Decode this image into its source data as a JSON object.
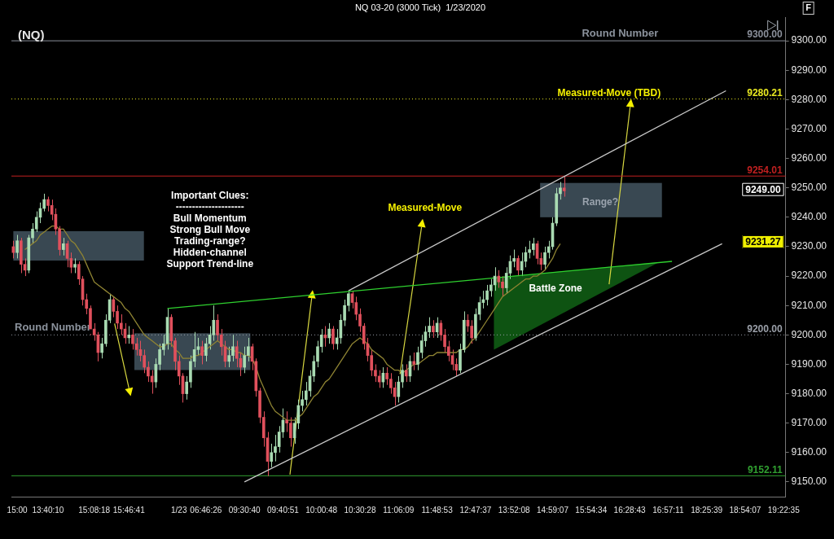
{
  "chart_data": {
    "type": "candlestick",
    "title": "NQ 03-20 (3000 Tick)  1/23/2020",
    "subtitle": "(NQ)",
    "categories": [
      null,
      "15:00",
      null,
      null,
      null,
      null,
      null,
      null,
      null,
      "13:40:10",
      null,
      null,
      null,
      null,
      null,
      null,
      null,
      null,
      null,
      null,
      null,
      "15:08:18",
      null,
      null,
      null,
      null,
      null,
      null,
      null,
      null,
      "15:46:41",
      null,
      null,
      null,
      null,
      null,
      null,
      null,
      null,
      null,
      null,
      null,
      null,
      "1/23",
      null,
      null,
      null,
      null,
      null,
      null,
      "06:46:26",
      null,
      null,
      null,
      null,
      null,
      null,
      null,
      null,
      null,
      "09:30:40",
      null,
      null,
      null,
      null,
      null,
      null,
      null,
      null,
      null,
      "09:40:51",
      null,
      null,
      null,
      null,
      null,
      null,
      null,
      null,
      null,
      "10:00:48",
      null,
      null,
      null,
      null,
      null,
      null,
      null,
      null,
      null,
      "10:30:28",
      null,
      null,
      null,
      null,
      null,
      null,
      null,
      null,
      null,
      "11:06:09",
      null,
      null,
      null,
      null,
      null,
      null,
      null,
      null,
      null,
      "11:48:53",
      null,
      null,
      null,
      null,
      null,
      null,
      null,
      null,
      null,
      "12:47:37",
      null,
      null,
      null,
      null,
      null,
      null,
      null,
      null,
      null,
      "13:52:08",
      null,
      null,
      null,
      null,
      null,
      null,
      null,
      null,
      null,
      "14:59:07",
      null,
      null,
      null,
      null,
      null,
      null,
      null,
      null,
      null,
      "15:54:34",
      null,
      null,
      null,
      null,
      null,
      null,
      null,
      null,
      null,
      "16:28:43",
      null,
      null,
      null,
      null,
      null,
      null,
      null,
      null,
      null,
      "16:57:11",
      null,
      null,
      null,
      null,
      null,
      null,
      null,
      null,
      null,
      "18:25:39",
      null,
      null,
      null,
      null,
      null,
      null,
      null,
      null,
      null,
      "18:54:07",
      null,
      null,
      null,
      null,
      null,
      null,
      null,
      null,
      null,
      "19:22:35"
    ],
    "ohlc": [
      [
        9230,
        9232,
        9226,
        9228
      ],
      [
        9228,
        9234,
        9226,
        9232
      ],
      [
        9232,
        9233,
        9221,
        9224
      ],
      [
        9224,
        9226,
        9220,
        9222
      ],
      [
        9222,
        9234,
        9221,
        9233
      ],
      [
        9233,
        9238,
        9231,
        9236
      ],
      [
        9236,
        9242,
        9235,
        9240
      ],
      [
        9240,
        9245,
        9238,
        9243
      ],
      [
        9243,
        9248,
        9242,
        9246
      ],
      [
        9246,
        9247,
        9242,
        9244
      ],
      [
        9244,
        9246,
        9239,
        9241
      ],
      [
        9241,
        9243,
        9234,
        9236
      ],
      [
        9236,
        9237,
        9227,
        9229
      ],
      [
        9229,
        9233,
        9227,
        9231
      ],
      [
        9231,
        9232,
        9223,
        9226
      ],
      [
        9226,
        9228,
        9221,
        9223
      ],
      [
        9223,
        9226,
        9221,
        9224
      ],
      [
        9224,
        9225,
        9217,
        9219
      ],
      [
        9219,
        9220,
        9210,
        9212
      ],
      [
        9212,
        9214,
        9207,
        9209
      ],
      [
        9209,
        9210,
        9200,
        9202
      ],
      [
        9202,
        9204,
        9198,
        9200
      ],
      [
        9200,
        9201,
        9191,
        9194
      ],
      [
        9194,
        9199,
        9192,
        9197
      ],
      [
        9197,
        9207,
        9196,
        9205
      ],
      [
        9205,
        9214,
        9204,
        9212
      ],
      [
        9212,
        9213,
        9206,
        9208
      ],
      [
        9208,
        9210,
        9202,
        9204
      ],
      [
        9204,
        9207,
        9200,
        9202
      ],
      [
        9202,
        9204,
        9197,
        9199
      ],
      [
        9199,
        9203,
        9197,
        9200
      ],
      [
        9200,
        9202,
        9195,
        9197
      ],
      [
        9197,
        9199,
        9193,
        9195
      ],
      [
        9195,
        9198,
        9191,
        9193
      ],
      [
        9193,
        9195,
        9187,
        9189
      ],
      [
        9189,
        9191,
        9184,
        9186
      ],
      [
        9186,
        9188,
        9180,
        9184
      ],
      [
        9184,
        9192,
        9182,
        9190
      ],
      [
        9190,
        9197,
        9188,
        9195
      ],
      [
        9195,
        9200,
        9193,
        9197
      ],
      [
        9197,
        9209,
        9195,
        9206
      ],
      [
        9206,
        9207,
        9196,
        9198
      ],
      [
        9198,
        9199,
        9188,
        9191
      ],
      [
        9191,
        9193,
        9183,
        9186
      ],
      [
        9186,
        9187,
        9177,
        9180
      ],
      [
        9180,
        9186,
        9178,
        9184
      ],
      [
        9184,
        9193,
        9182,
        9191
      ],
      [
        9191,
        9201,
        9189,
        9195
      ],
      [
        9195,
        9199,
        9193,
        9196
      ],
      [
        9196,
        9198,
        9190,
        9193
      ],
      [
        9193,
        9199,
        9191,
        9197
      ],
      [
        9197,
        9203,
        9195,
        9200
      ],
      [
        9200,
        9210,
        9198,
        9205
      ],
      [
        9205,
        9207,
        9198,
        9200
      ],
      [
        9200,
        9202,
        9193,
        9196
      ],
      [
        9196,
        9198,
        9189,
        9191
      ],
      [
        9191,
        9196,
        9189,
        9193
      ],
      [
        9193,
        9200,
        9191,
        9196
      ],
      [
        9196,
        9198,
        9189,
        9192
      ],
      [
        9192,
        9194,
        9186,
        9189
      ],
      [
        9189,
        9196,
        9187,
        9193
      ],
      [
        9193,
        9199,
        9191,
        9196
      ],
      [
        9196,
        9197,
        9188,
        9191
      ],
      [
        9191,
        9192,
        9179,
        9181
      ],
      [
        9181,
        9182,
        9170,
        9172
      ],
      [
        9172,
        9174,
        9162,
        9165
      ],
      [
        9165,
        9167,
        9152,
        9157
      ],
      [
        9157,
        9163,
        9155,
        9160
      ],
      [
        9160,
        9166,
        9157,
        9162
      ],
      [
        9162,
        9169,
        9160,
        9167
      ],
      [
        9167,
        9175,
        9165,
        9171
      ],
      [
        9171,
        9174,
        9167,
        9170
      ],
      [
        9170,
        9172,
        9162,
        9165
      ],
      [
        9165,
        9172,
        9163,
        9170
      ],
      [
        9170,
        9178,
        9168,
        9176
      ],
      [
        9176,
        9181,
        9174,
        9178
      ],
      [
        9178,
        9184,
        9176,
        9181
      ],
      [
        9181,
        9188,
        9179,
        9186
      ],
      [
        9186,
        9193,
        9184,
        9191
      ],
      [
        9191,
        9198,
        9189,
        9196
      ],
      [
        9196,
        9202,
        9194,
        9200
      ],
      [
        9200,
        9203,
        9196,
        9199
      ],
      [
        9199,
        9204,
        9197,
        9202
      ],
      [
        9202,
        9203,
        9195,
        9197
      ],
      [
        9197,
        9202,
        9195,
        9199
      ],
      [
        9199,
        9207,
        9197,
        9205
      ],
      [
        9205,
        9212,
        9203,
        9210
      ],
      [
        9210,
        9215,
        9208,
        9214
      ],
      [
        9214,
        9215,
        9209,
        9211
      ],
      [
        9211,
        9213,
        9205,
        9207
      ],
      [
        9207,
        9209,
        9201,
        9203
      ],
      [
        9203,
        9204,
        9195,
        9197
      ],
      [
        9197,
        9199,
        9191,
        9193
      ],
      [
        9193,
        9195,
        9186,
        9188
      ],
      [
        9188,
        9190,
        9184,
        9186
      ],
      [
        9186,
        9188,
        9182,
        9184
      ],
      [
        9184,
        9189,
        9182,
        9187
      ],
      [
        9187,
        9189,
        9183,
        9185
      ],
      [
        9185,
        9187,
        9180,
        9182
      ],
      [
        9182,
        9184,
        9176,
        9179
      ],
      [
        9179,
        9186,
        9177,
        9184
      ],
      [
        9184,
        9190,
        9182,
        9188
      ],
      [
        9188,
        9190,
        9184,
        9186
      ],
      [
        9186,
        9193,
        9184,
        9191
      ],
      [
        9191,
        9194,
        9188,
        9190
      ],
      [
        9190,
        9196,
        9188,
        9194
      ],
      [
        9194,
        9200,
        9192,
        9198
      ],
      [
        9198,
        9203,
        9196,
        9201
      ],
      [
        9201,
        9206,
        9199,
        9203
      ],
      [
        9203,
        9205,
        9199,
        9201
      ],
      [
        9201,
        9206,
        9199,
        9204
      ],
      [
        9204,
        9205,
        9198,
        9200
      ],
      [
        9200,
        9202,
        9194,
        9196
      ],
      [
        9196,
        9198,
        9191,
        9193
      ],
      [
        9193,
        9195,
        9188,
        9190
      ],
      [
        9190,
        9192,
        9186,
        9188
      ],
      [
        9188,
        9197,
        9187,
        9195
      ],
      [
        9195,
        9208,
        9194,
        9205
      ],
      [
        9205,
        9207,
        9201,
        9203
      ],
      [
        9203,
        9205,
        9197,
        9199
      ],
      [
        9199,
        9209,
        9198,
        9207
      ],
      [
        9207,
        9213,
        9205,
        9211
      ],
      [
        9211,
        9215,
        9209,
        9212
      ],
      [
        9212,
        9217,
        9210,
        9215
      ],
      [
        9215,
        9219,
        9213,
        9217
      ],
      [
        9217,
        9223,
        9215,
        9220
      ],
      [
        9220,
        9222,
        9216,
        9218
      ],
      [
        9218,
        9220,
        9213,
        9216
      ],
      [
        9216,
        9223,
        9214,
        9221
      ],
      [
        9221,
        9227,
        9219,
        9225
      ],
      [
        9225,
        9229,
        9223,
        9226
      ],
      [
        9226,
        9227,
        9220,
        9222
      ],
      [
        9222,
        9228,
        9220,
        9225
      ],
      [
        9225,
        9230,
        9223,
        9228
      ],
      [
        9228,
        9232,
        9226,
        9229
      ],
      [
        9229,
        9233,
        9227,
        9231
      ],
      [
        9231,
        9232,
        9224,
        9226
      ],
      [
        9226,
        9228,
        9222,
        9224
      ],
      [
        9224,
        9230,
        9222,
        9228
      ],
      [
        9228,
        9232,
        9226,
        9230
      ],
      [
        9230,
        9240,
        9229,
        9238
      ],
      [
        9238,
        9250,
        9237,
        9248
      ],
      [
        9248,
        9252,
        9246,
        9250
      ],
      [
        9250,
        9254,
        9247,
        9249
      ],
      null,
      null,
      null,
      null,
      null,
      null,
      null,
      null,
      null,
      null,
      null,
      null,
      null,
      null,
      null,
      null,
      null,
      null,
      null,
      null,
      null,
      null,
      null,
      null,
      null,
      null,
      null,
      null,
      null,
      null,
      null,
      null,
      null,
      null,
      null,
      null,
      null,
      null,
      null,
      null,
      null,
      null,
      null,
      null,
      null,
      null,
      null,
      null,
      null,
      null,
      null,
      null,
      null,
      null,
      null,
      null,
      null
    ],
    "colors": [
      "#e0505c",
      "#a9dbb2",
      "#e0505c",
      "#e0505c",
      "#a9dbb2",
      "#a9dbb2",
      "#a9dbb2",
      "#a9dbb2",
      "#a9dbb2",
      "#e0505c",
      "#e0505c",
      "#e0505c",
      "#e0505c",
      "#a9dbb2",
      "#e0505c",
      "#e0505c",
      "#a9dbb2",
      "#e0505c",
      "#e0505c",
      "#e0505c",
      "#e0505c",
      "#e0505c",
      "#e0505c",
      "#a9dbb2",
      "#a9dbb2",
      "#a9dbb2",
      "#e0505c",
      "#e0505c",
      "#e0505c",
      "#e0505c",
      "#a9dbb2",
      "#e0505c",
      "#e0505c",
      "#e0505c",
      "#e0505c",
      "#e0505c",
      "#e0505c",
      "#a9dbb2",
      "#a9dbb2",
      "#a9dbb2",
      "#a9dbb2",
      "#e0505c",
      "#e0505c",
      "#e0505c",
      "#e0505c",
      "#a9dbb2",
      "#a9dbb2",
      "#a9dbb2",
      "#a9dbb2",
      "#e0505c",
      "#a9dbb2",
      "#a9dbb2",
      "#a9dbb2",
      "#e0505c",
      "#e0505c",
      "#e0505c",
      "#a9dbb2",
      "#a9dbb2",
      "#e0505c",
      "#e0505c",
      "#a9dbb2",
      "#a9dbb2",
      "#e0505c",
      "#e0505c",
      "#e0505c",
      "#e0505c",
      "#e0505c",
      "#a9dbb2",
      "#a9dbb2",
      "#a9dbb2",
      "#a9dbb2",
      "#e0505c",
      "#e0505c",
      "#a9dbb2",
      "#a9dbb2",
      "#a9dbb2",
      "#a9dbb2",
      "#a9dbb2",
      "#a9dbb2",
      "#a9dbb2",
      "#a9dbb2",
      "#e0505c",
      "#a9dbb2",
      "#e0505c",
      "#a9dbb2",
      "#a9dbb2",
      "#a9dbb2",
      "#a9dbb2",
      "#e0505c",
      "#e0505c",
      "#e0505c",
      "#e0505c",
      "#e0505c",
      "#e0505c",
      "#e0505c",
      "#e0505c",
      "#a9dbb2",
      "#e0505c",
      "#e0505c",
      "#e0505c",
      "#a9dbb2",
      "#a9dbb2",
      "#e0505c",
      "#a9dbb2",
      "#e0505c",
      "#a9dbb2",
      "#a9dbb2",
      "#a9dbb2",
      "#a9dbb2",
      "#e0505c",
      "#a9dbb2",
      "#e0505c",
      "#e0505c",
      "#e0505c",
      "#e0505c",
      "#e0505c",
      "#a9dbb2",
      "#a9dbb2",
      "#e0505c",
      "#e0505c",
      "#a9dbb2",
      "#a9dbb2",
      "#a9dbb2",
      "#a9dbb2",
      "#a9dbb2",
      "#a9dbb2",
      "#e0505c",
      "#e0505c",
      "#a9dbb2",
      "#a9dbb2",
      "#a9dbb2",
      "#e0505c",
      "#a9dbb2",
      "#a9dbb2",
      "#a9dbb2",
      "#a9dbb2",
      "#e0505c",
      "#e0505c",
      "#a9dbb2",
      "#a9dbb2",
      "#a9dbb2",
      "#a9dbb2",
      "#a9dbb2",
      "#e0505c",
      null,
      null,
      null,
      null,
      null,
      null,
      null,
      null,
      null,
      null,
      null,
      null,
      null,
      null,
      null,
      null,
      null,
      null,
      null,
      null,
      null,
      null,
      null,
      null,
      null,
      null,
      null,
      null,
      null,
      null,
      null,
      null,
      null,
      null,
      null,
      null,
      null,
      null,
      null,
      null,
      null,
      null,
      null,
      null,
      null,
      null,
      null,
      null,
      null,
      null,
      null,
      null,
      null,
      null,
      null,
      null,
      null
    ],
    "series": [
      {
        "type": "line",
        "color": "#8f8433",
        "values": [
          null,
          null,
          null,
          9229,
          9230,
          9231,
          9232,
          9234,
          9235,
          9236,
          9237,
          9237,
          9236,
          9236,
          9234,
          9232,
          9231,
          9229,
          9227,
          9224,
          9221,
          9218,
          9217,
          9216,
          9215,
          9214,
          9213,
          9212,
          9211,
          9209,
          9208,
          9206,
          9204,
          9202,
          9200,
          9199,
          9198,
          9197,
          9196,
          9196,
          9197,
          9197,
          9195,
          9194,
          9192,
          9192,
          9192,
          9193,
          9193,
          9194,
          9195,
          9196,
          9197,
          9198,
          9197,
          9196,
          9195,
          9195,
          9194,
          9194,
          9193,
          9193,
          9192,
          9189,
          9185,
          9182,
          9179,
          9176,
          9174,
          9173,
          9172,
          9171,
          9171,
          9171,
          9172,
          9173,
          9175,
          9177,
          9179,
          9180,
          9182,
          9184,
          9185,
          9187,
          9189,
          9191,
          9193,
          9195,
          9197,
          9198,
          9199,
          9198,
          9197,
          9195,
          9194,
          9193,
          9192,
          9190,
          9189,
          9188,
          9188,
          9187,
          9188,
          9189,
          9190,
          9190,
          9191,
          9192,
          9193,
          9193,
          9194,
          9194,
          9194,
          9194,
          9194,
          9194,
          9195,
          9195,
          9196,
          9198,
          9199,
          9201,
          9203,
          9205,
          9207,
          9209,
          9211,
          9213,
          9214,
          9215,
          9216,
          9217,
          9218,
          9219,
          9219,
          9220,
          9220,
          9221,
          9222,
          9224,
          9226,
          9229,
          9231,
          null,
          null,
          null,
          null,
          null,
          null,
          null,
          null,
          null,
          null,
          null,
          null,
          null,
          null,
          null,
          null,
          null,
          null,
          null,
          null,
          null,
          null,
          null,
          null,
          null,
          null,
          null,
          null,
          null,
          null,
          null,
          null,
          null,
          null,
          null,
          null,
          null,
          null,
          null,
          null,
          null,
          null,
          null,
          null,
          null,
          null,
          null,
          null,
          null,
          null,
          null,
          null,
          null,
          null,
          null,
          null,
          null,
          null
        ]
      },
      {
        "type": "line",
        "color": "#2fd12f",
        "values": [
          null,
          null,
          null,
          null,
          null,
          null,
          null,
          null,
          null,
          null,
          null,
          null,
          null,
          null,
          null,
          null,
          null,
          null,
          null,
          null,
          null,
          null,
          null,
          null,
          null,
          null,
          null,
          null,
          null,
          null,
          null,
          null,
          null,
          null,
          null,
          null,
          null,
          null,
          null,
          null,
          9209,
          null,
          null,
          null,
          null,
          null,
          null,
          null,
          null,
          null,
          null,
          null,
          null,
          null,
          null,
          null,
          null,
          null,
          null,
          null,
          null,
          null,
          null,
          null,
          null,
          null,
          null,
          null,
          null,
          null,
          null,
          null,
          null,
          null,
          null,
          null,
          null,
          null,
          null,
          null,
          null,
          null,
          null,
          null,
          null,
          null,
          null,
          null,
          null,
          null,
          null,
          null,
          null,
          null,
          null,
          null,
          null,
          null,
          null,
          null,
          null,
          null,
          null,
          null,
          null,
          null,
          null,
          null,
          null,
          null,
          null,
          null,
          null,
          null,
          null,
          null,
          null,
          null,
          null,
          null,
          null,
          null,
          null,
          null,
          null,
          null,
          null,
          null,
          null,
          null,
          null,
          null,
          null,
          null,
          null,
          null,
          null,
          null,
          null,
          null,
          null,
          null,
          null,
          null,
          null,
          null,
          null,
          null,
          null,
          null,
          null,
          null,
          null,
          null,
          null,
          null,
          null,
          null,
          null,
          null,
          null,
          null,
          null,
          null,
          null,
          null,
          null,
          null,
          null,
          null,
          null,
          9225,
          null,
          null,
          null,
          null,
          null,
          null,
          null,
          null,
          null,
          null,
          null,
          null,
          null,
          null,
          null,
          null,
          null,
          null,
          null,
          null,
          null,
          null,
          null,
          null,
          null,
          null,
          null,
          null,
          null
        ]
      },
      {
        "type": "line",
        "color": "#c8c8c8",
        "values": [
          null,
          null,
          null,
          null,
          null,
          null,
          null,
          null,
          null,
          null,
          null,
          null,
          null,
          null,
          null,
          null,
          null,
          null,
          null,
          null,
          null,
          null,
          null,
          null,
          null,
          null,
          null,
          null,
          null,
          null,
          null,
          null,
          null,
          null,
          null,
          null,
          null,
          null,
          null,
          null,
          null,
          null,
          null,
          null,
          null,
          null,
          null,
          null,
          null,
          null,
          null,
          null,
          null,
          null,
          null,
          null,
          null,
          null,
          null,
          null,
          null,
          null,
          null,
          null,
          null,
          null,
          null,
          null,
          null,
          null,
          null,
          null,
          null,
          null,
          null,
          null,
          null,
          null,
          null,
          null,
          null,
          null,
          null,
          null,
          null,
          null,
          null,
          9215,
          null,
          null,
          null,
          null,
          null,
          null,
          null,
          null,
          null,
          null,
          null,
          null,
          null,
          null,
          null,
          null,
          null,
          null,
          null,
          null,
          null,
          null,
          null,
          null,
          null,
          null,
          null,
          null,
          null,
          null,
          null,
          null,
          null,
          null,
          null,
          null,
          null,
          null,
          null,
          null,
          null,
          null,
          null,
          null,
          null,
          null,
          null,
          null,
          null,
          null,
          null,
          null,
          null,
          null,
          null,
          null,
          null,
          null,
          null,
          null,
          null,
          null,
          null,
          null,
          null,
          null,
          null,
          null,
          null,
          null,
          null,
          null,
          null,
          null,
          null,
          null,
          null,
          null,
          null,
          null,
          null,
          null,
          null,
          null,
          null,
          null,
          null,
          null,
          null,
          null,
          null,
          null,
          null,
          null,
          null,
          null,
          null,
          9283,
          null,
          null,
          null,
          null,
          null,
          null,
          null,
          null,
          null,
          null,
          null,
          null,
          null,
          null,
          null
        ]
      },
      {
        "type": "line",
        "color": "#c8c8c8",
        "values": [
          null,
          null,
          null,
          null,
          null,
          null,
          null,
          null,
          null,
          null,
          null,
          null,
          null,
          null,
          null,
          null,
          null,
          null,
          null,
          null,
          null,
          null,
          null,
          null,
          null,
          null,
          null,
          null,
          null,
          null,
          null,
          null,
          null,
          null,
          null,
          null,
          null,
          null,
          null,
          null,
          null,
          null,
          null,
          null,
          null,
          null,
          null,
          null,
          null,
          null,
          null,
          null,
          null,
          null,
          null,
          null,
          null,
          null,
          null,
          null,
          9150,
          null,
          null,
          null,
          null,
          null,
          null,
          null,
          null,
          null,
          null,
          null,
          null,
          null,
          null,
          null,
          null,
          null,
          null,
          null,
          null,
          null,
          null,
          null,
          null,
          null,
          null,
          null,
          null,
          null,
          null,
          null,
          null,
          null,
          null,
          null,
          null,
          null,
          null,
          null,
          null,
          null,
          null,
          null,
          null,
          null,
          null,
          null,
          null,
          null,
          null,
          null,
          null,
          null,
          null,
          null,
          null,
          null,
          null,
          null,
          null,
          null,
          null,
          null,
          null,
          null,
          null,
          null,
          null,
          null,
          null,
          null,
          null,
          null,
          null,
          null,
          null,
          null,
          null,
          null,
          null,
          null,
          null,
          null,
          null,
          null,
          null,
          null,
          null,
          null,
          null,
          null,
          null,
          null,
          null,
          null,
          null,
          null,
          null,
          null,
          null,
          null,
          null,
          null,
          null,
          null,
          null,
          null,
          null,
          null,
          null,
          null,
          null,
          null,
          null,
          null,
          null,
          null,
          null,
          null,
          null,
          null,
          null,
          null,
          9231,
          null,
          null,
          null,
          null,
          null,
          null,
          null,
          null,
          null,
          null,
          null,
          null,
          null,
          null,
          null,
          null
        ]
      }
    ],
    "marker": "none",
    "ylim": [
      9145,
      9308
    ],
    "yticks": [
      {
        "value": 9150,
        "label": "9150.00"
      },
      {
        "value": 9160,
        "label": "9160.00"
      },
      {
        "value": 9170,
        "label": "9170.00"
      },
      {
        "value": 9180,
        "label": "9180.00"
      },
      {
        "value": 9190,
        "label": "9190.00"
      },
      {
        "value": 9200,
        "label": "9200.00"
      },
      {
        "value": 9210,
        "label": "9210.00"
      },
      {
        "value": 9220,
        "label": "9220.00"
      },
      {
        "value": 9230,
        "label": "9230.00"
      },
      {
        "value": 9240,
        "label": "9240.00"
      },
      {
        "value": 9250,
        "label": "9250.00"
      },
      {
        "value": 9260,
        "label": "9260.00"
      },
      {
        "value": 9270,
        "label": "9270.00"
      },
      {
        "value": 9280,
        "label": "9280.00"
      },
      {
        "value": 9290,
        "label": "9290.00"
      },
      {
        "value": 9300,
        "label": "9300.00"
      }
    ],
    "ref_lines": [
      {
        "axis": "y",
        "value": 9300,
        "label": "9300.00",
        "color": "#8a8f9a",
        "line_style": "solid"
      },
      {
        "axis": "y",
        "value": 9200,
        "label": "9200.00",
        "color": "#9a9fa8",
        "line_style": "dotted"
      },
      {
        "axis": "y",
        "value": 9280.21,
        "label": "9280.21",
        "color": "#e8e820",
        "line_style": "dotted"
      },
      {
        "axis": "y",
        "value": 9254.01,
        "label": "9254.01",
        "color": "#c02020",
        "line_style": "solid"
      },
      {
        "axis": "y",
        "value": 9152.11,
        "label": "9152.11",
        "color": "#30a030",
        "line_style": "solid"
      }
    ],
    "annotations": [
      "Important Clues:",
      "---------------------",
      "Bull Momentum",
      "Strong Bull Move",
      "Trading-range?",
      "Hidden-channel",
      "Support Trend-line",
      "Measured-Move",
      "Measured-Move (TBD)",
      "Range?",
      "Battle Zone",
      {
        "text": "Round Number",
        "y": 9300
      },
      {
        "text": "Round Number",
        "y": 9200
      },
      "9249.00",
      "9231.27",
      "F"
    ]
  }
}
